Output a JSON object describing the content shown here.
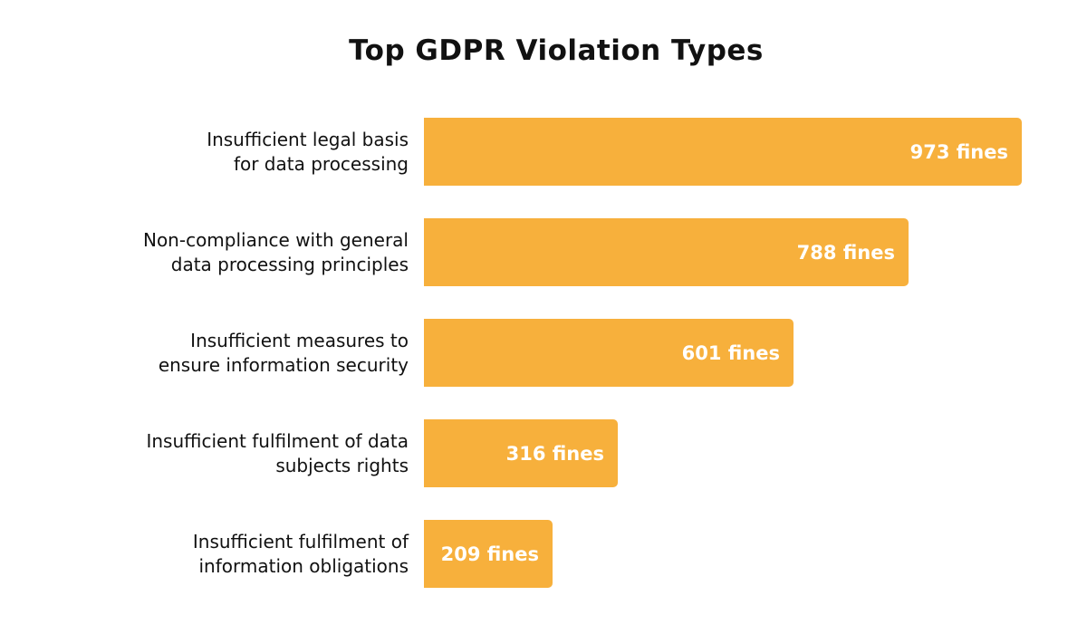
{
  "chart_data": {
    "type": "bar",
    "orientation": "horizontal",
    "title": "Top GDPR Violation Types",
    "xlabel": "",
    "ylabel": "",
    "grid": false,
    "bar_color": "#F7B03C",
    "value_label_color": "#FFFFFF",
    "categories": [
      [
        "Insufficient legal basis",
        "for data processing"
      ],
      [
        "Non-compliance with general",
        "data processing principles"
      ],
      [
        "Insufficient measures to",
        "ensure information security"
      ],
      [
        "Insufficient fulfilment of data",
        "subjects rights"
      ],
      [
        "Insufficient fulfilment of",
        "information obligations"
      ]
    ],
    "values": [
      973,
      788,
      601,
      316,
      209
    ],
    "value_labels": [
      "973 fines",
      "788 fines",
      "601 fines",
      "316 fines",
      "209 fines"
    ]
  }
}
